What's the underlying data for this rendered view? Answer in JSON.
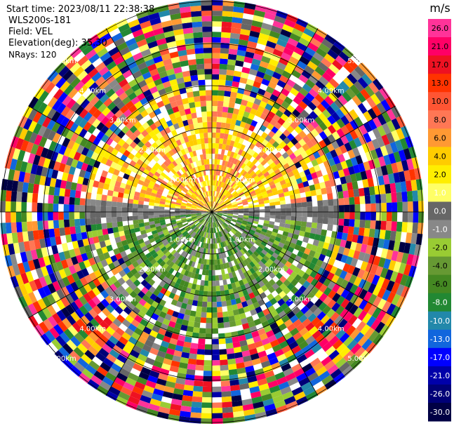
{
  "header": {
    "start_time": "Start time: 2023/08/11 22:38:38",
    "instrument": "WLS200s-181",
    "field": "Field: VEL",
    "elevation": "Elevation(deg): 35.30",
    "nrays": "NRays: 120"
  },
  "chart_data": {
    "type": "heatmap",
    "projection": "polar-ppi",
    "field": "VEL",
    "nrays": 120,
    "range_rings_km": [
      1.0,
      2.0,
      3.0,
      4.0,
      5.0
    ],
    "ring_labels": [
      "1.00km",
      "2.00km",
      "3.00km",
      "4.00km",
      "5.00km"
    ],
    "max_range_km": 5.0,
    "colorbar": {
      "unit": "m/s",
      "ticks": [
        "26.0",
        "21.0",
        "17.0",
        "13.0",
        "10.0",
        "8.0",
        "6.0",
        "4.0",
        "2.0",
        "1.0",
        "0.0",
        "-1.0",
        "-2.0",
        "-4.0",
        "-6.0",
        "-8.0",
        "-10.0",
        "-13.0",
        "-17.0",
        "-21.0",
        "-26.0",
        "-30.0"
      ],
      "colors": [
        "#ff3399",
        "#ff0066",
        "#ee1122",
        "#ff3300",
        "#ff5533",
        "#ff7755",
        "#ff9933",
        "#ffcc00",
        "#ffee00",
        "#ffff66",
        "#666666",
        "#888888",
        "#99cc33",
        "#669933",
        "#448822",
        "#228833",
        "#2288aa",
        "#1166dd",
        "#0000ff",
        "#0000aa",
        "#000077",
        "#000044"
      ]
    }
  }
}
